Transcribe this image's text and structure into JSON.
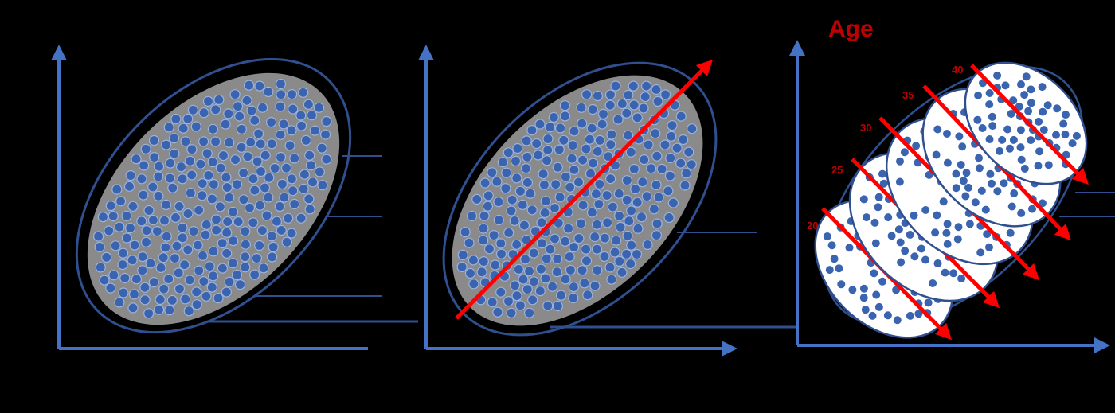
{
  "diagram": {
    "title": "Age",
    "age_labels": [
      "20",
      "25",
      "30",
      "35",
      "40"
    ],
    "panels": [
      {
        "name": "scatter"
      },
      {
        "name": "scatter-with-trend-line"
      },
      {
        "name": "scatter-stratified-by-age"
      }
    ],
    "colors": {
      "background": "#000000",
      "axis": "#4472c4",
      "ellipse_outline": "#2f4f8f",
      "dot_fill": "#3a63b0",
      "dot_stroke": "#9db3da",
      "cloud_fill": "#8a8a8a",
      "group_fill": "#ffffff",
      "trend_line": "#ff0000",
      "title": "#c00000",
      "age_label": "#c00000",
      "guide_line": "#2f4f8f"
    }
  }
}
